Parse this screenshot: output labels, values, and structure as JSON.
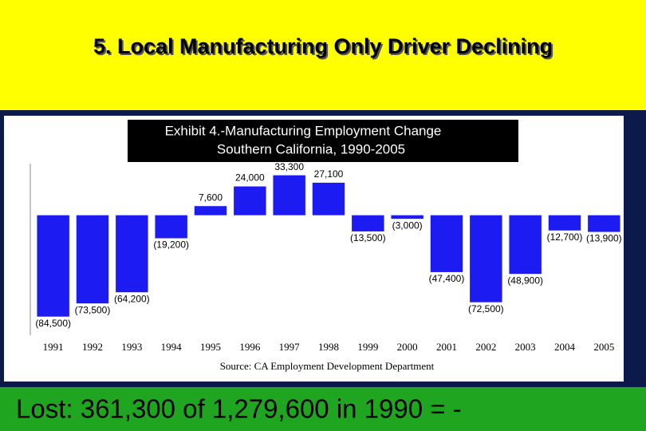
{
  "slide": {
    "title": "5. Local Manufacturing Only Driver Declining",
    "footer": "Lost: 361,300 of 1,279,600 in 1990 = -"
  },
  "chart_data": {
    "type": "bar",
    "title": "Exhibit 4.-Manufacturing Employment Change",
    "subtitle": "Southern California, 1990-2005",
    "source": "Source:  CA Employment Development Department",
    "categories": [
      "1991",
      "1992",
      "1993",
      "1994",
      "1995",
      "1996",
      "1997",
      "1998",
      "1999",
      "2000",
      "2001",
      "2002",
      "2003",
      "2004",
      "2005"
    ],
    "values": [
      -84500,
      -73500,
      -64200,
      -19200,
      7600,
      24000,
      33300,
      27100,
      -13500,
      -3000,
      -47400,
      -72500,
      -48900,
      -12700,
      -13900
    ],
    "value_labels": [
      "(84,500)",
      "(73,500)",
      "(64,200)",
      "(19,200)",
      "7,600",
      "24,000",
      "33,300",
      "27,100",
      "(13,500)",
      "(3,000)",
      "(47,400)",
      "(72,500)",
      "(48,900)",
      "(12,700)",
      "(13,900)"
    ],
    "color": "#1c1cf2",
    "ylim": [
      -100000,
      43000
    ]
  }
}
